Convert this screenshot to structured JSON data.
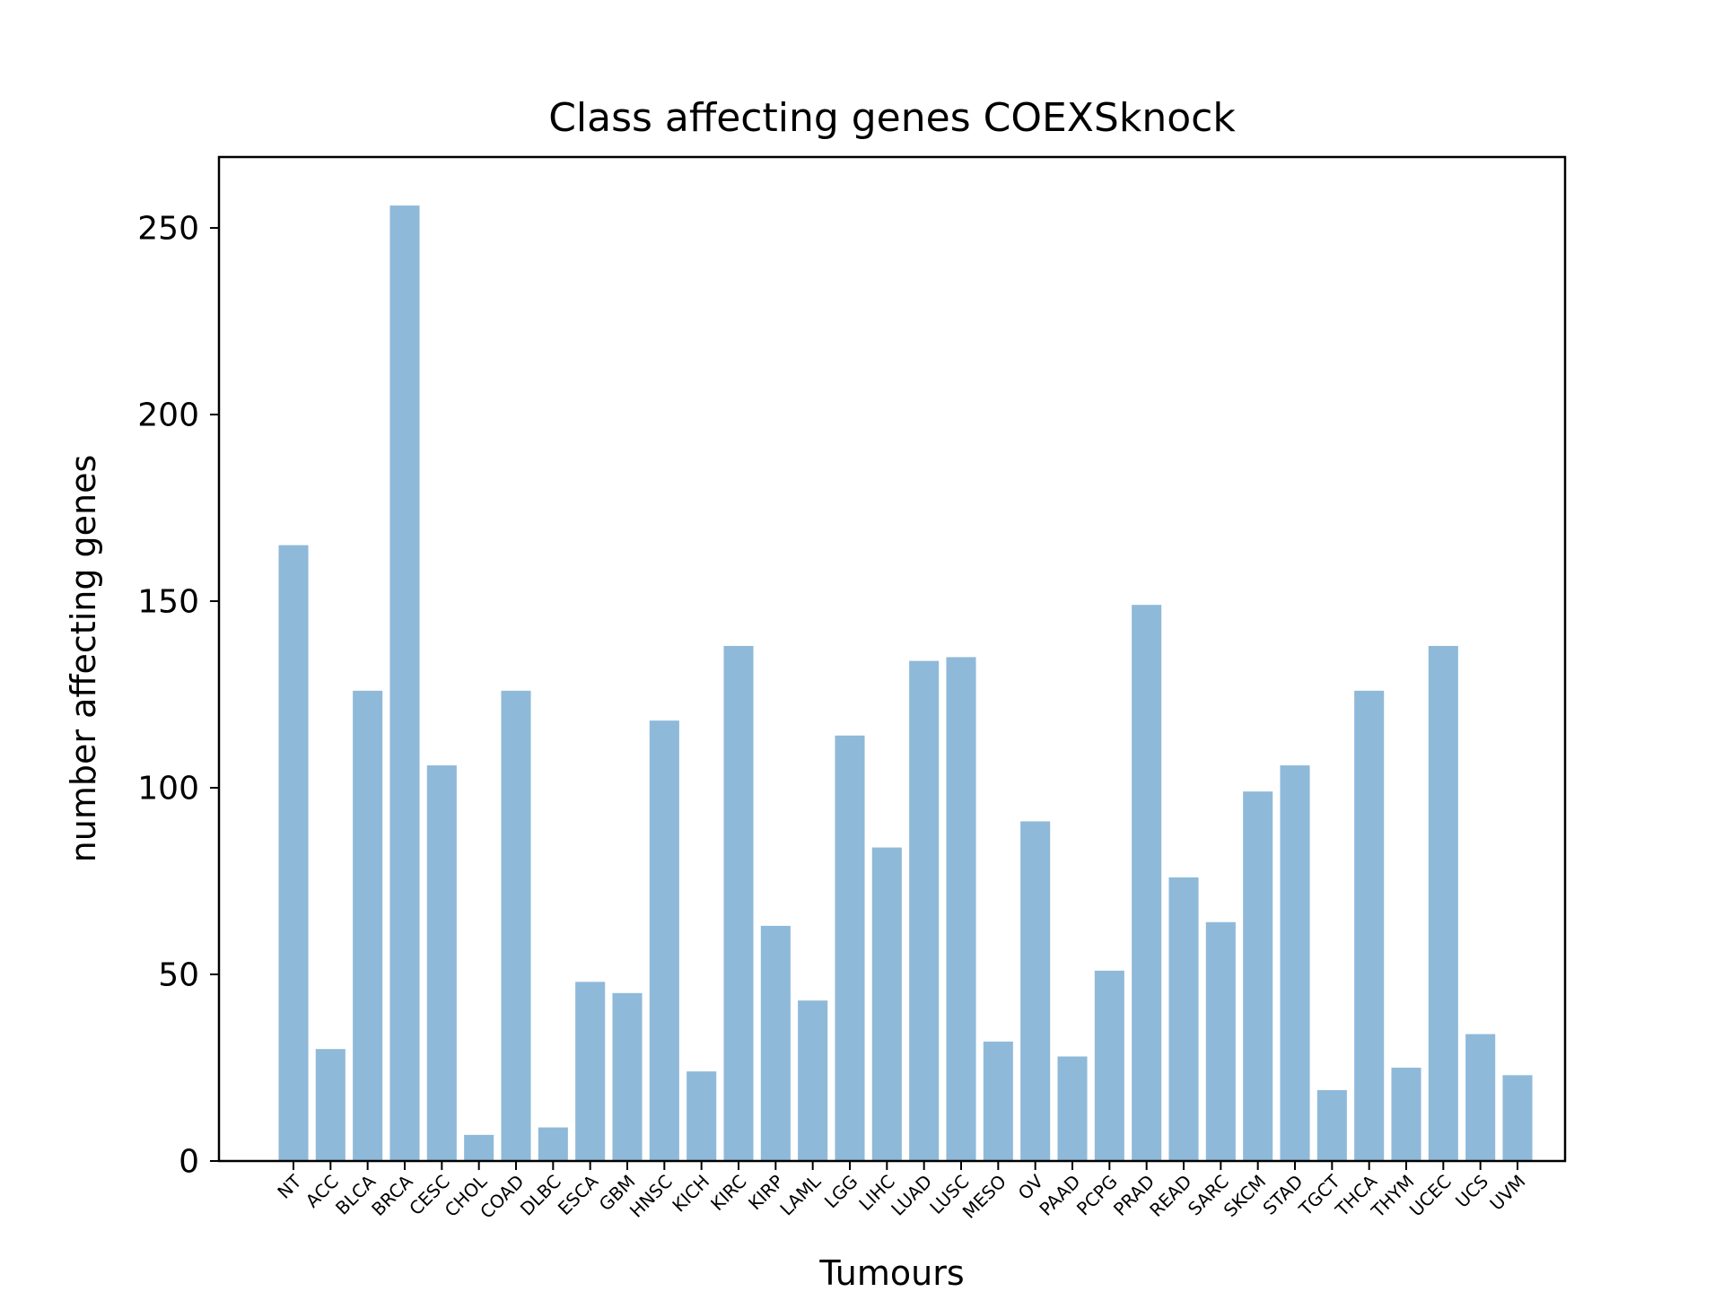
{
  "chart_data": {
    "type": "bar",
    "title": "Class affecting genes COEXSknock",
    "xlabel": "Tumours",
    "ylabel": "number affecting genes",
    "categories": [
      "NT",
      "ACC",
      "BLCA",
      "BRCA",
      "CESC",
      "CHOL",
      "COAD",
      "DLBC",
      "ESCA",
      "GBM",
      "HNSC",
      "KICH",
      "KIRC",
      "KIRP",
      "LAML",
      "LGG",
      "LIHC",
      "LUAD",
      "LUSC",
      "MESO",
      "OV",
      "PAAD",
      "PCPG",
      "PRAD",
      "READ",
      "SARC",
      "SKCM",
      "STAD",
      "TGCT",
      "THCA",
      "THYM",
      "UCEC",
      "UCS",
      "UVM"
    ],
    "values": [
      165,
      30,
      126,
      256,
      106,
      7,
      126,
      9,
      48,
      45,
      118,
      24,
      138,
      63,
      43,
      114,
      84,
      134,
      135,
      32,
      91,
      28,
      51,
      149,
      76,
      64,
      99,
      106,
      19,
      126,
      25,
      138,
      34,
      23
    ],
    "yticks": [
      "0",
      "50",
      "100",
      "150",
      "200",
      "250"
    ],
    "ylim": [
      0,
      269
    ],
    "bar_color": "#8fb9d9",
    "grid": false,
    "legend": "none"
  }
}
